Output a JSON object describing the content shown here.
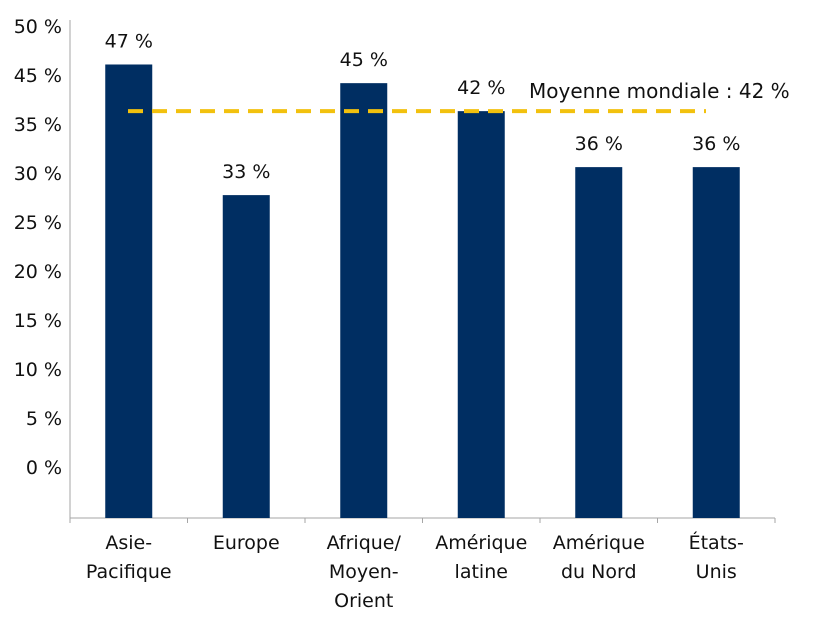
{
  "colors": {
    "bar": "#002E62",
    "average_line": "#F2C10E",
    "axis": "#A6A6A6"
  },
  "chart_data": {
    "type": "bar",
    "title": "",
    "xlabel": "",
    "ylabel": "",
    "categories": [
      [
        "Asie-",
        "Pacifique"
      ],
      [
        "Europe"
      ],
      [
        "Afrique/",
        "Moyen-",
        "Orient"
      ],
      [
        "Amérique",
        "latine"
      ],
      [
        "Amérique",
        "du Nord"
      ],
      [
        "États-",
        "Unis"
      ]
    ],
    "values": [
      47,
      33,
      45,
      42,
      36,
      36
    ],
    "value_labels": [
      "47 %",
      "33 %",
      "45 %",
      "42 %",
      "36 %",
      "36 %"
    ],
    "y_ticks": [
      "50 %",
      "45 %",
      "35 %",
      "30 %",
      "25 %",
      "20 %",
      "15 %",
      "10 %",
      "5 %",
      "0 %"
    ],
    "ylim": [
      0,
      50
    ],
    "grid": false,
    "average": {
      "value": 42,
      "label": "Moyenne mondiale : 42 %"
    }
  }
}
